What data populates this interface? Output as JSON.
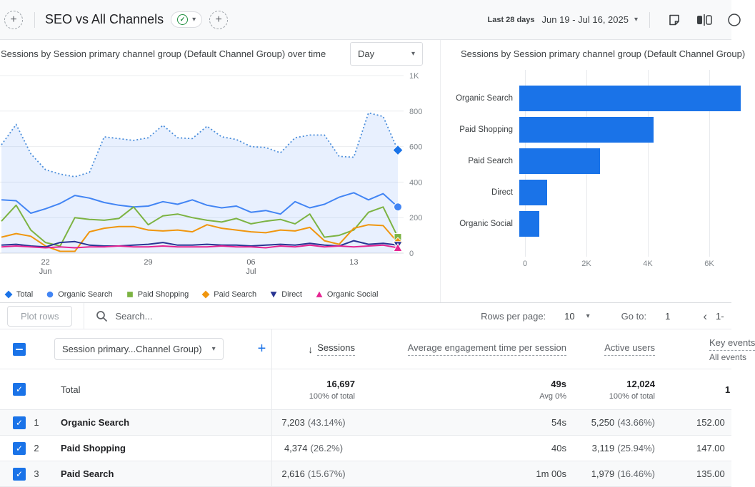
{
  "icons": {
    "add": "+",
    "caret": "▾",
    "check": "✓",
    "sort_desc": "↓",
    "chevron_left": "‹"
  },
  "topbar": {
    "title": "SEO vs All Channels",
    "date_preset": "Last 28 days",
    "date_range": "Jun 19 - Jul 16, 2025"
  },
  "left_chart": {
    "title": "Sessions by Session primary channel group (Default Channel Group) over time",
    "granularity": "Day"
  },
  "right_chart": {
    "title": "Sessions by Session primary channel group (Default Channel Group)"
  },
  "chart_data": [
    {
      "type": "line",
      "title": "Sessions by Session primary channel group (Default Channel Group) over time",
      "granularity": "Day",
      "x_range": [
        "Jun 19, 2025",
        "Jul 16, 2025"
      ],
      "ylim": [
        0,
        1000
      ],
      "y_ticks": [
        {
          "label": "1K",
          "value": 1000
        },
        {
          "label": "800",
          "value": 800
        },
        {
          "label": "600",
          "value": 600
        },
        {
          "label": "400",
          "value": 400
        },
        {
          "label": "200",
          "value": 200
        },
        {
          "label": "0",
          "value": 0
        }
      ],
      "x_ticks": [
        {
          "label": "22",
          "sublabel": "Jun",
          "day": 3
        },
        {
          "label": "29",
          "sublabel": "",
          "day": 10
        },
        {
          "label": "06",
          "sublabel": "Jul",
          "day": 17
        },
        {
          "label": "13",
          "sublabel": "",
          "day": 24
        }
      ],
      "series": [
        {
          "name": "Total",
          "color": "#4b8edb",
          "marker_color": "#1a73e8",
          "dotted": true,
          "fill": "rgba(66,133,244,0.12)",
          "marker": "diamond",
          "values": [
            610,
            725,
            560,
            470,
            445,
            430,
            455,
            655,
            645,
            635,
            650,
            720,
            650,
            645,
            715,
            655,
            640,
            600,
            595,
            565,
            650,
            665,
            665,
            545,
            540,
            790,
            770,
            580
          ]
        },
        {
          "name": "Organic Search",
          "color": "#4285f4",
          "marker": "circle",
          "values": [
            300,
            295,
            225,
            250,
            280,
            325,
            310,
            285,
            270,
            260,
            265,
            290,
            275,
            300,
            270,
            255,
            265,
            230,
            240,
            220,
            290,
            255,
            275,
            315,
            340,
            300,
            335,
            260
          ]
        },
        {
          "name": "Paid Shopping",
          "color": "#7cb342",
          "marker": "square",
          "values": [
            180,
            270,
            130,
            60,
            40,
            200,
            190,
            185,
            195,
            260,
            160,
            210,
            220,
            200,
            185,
            175,
            195,
            165,
            180,
            190,
            165,
            220,
            90,
            100,
            130,
            230,
            260,
            90
          ]
        },
        {
          "name": "Paid Search",
          "color": "#f0960e",
          "marker": "diamond",
          "values": [
            90,
            110,
            95,
            40,
            10,
            10,
            120,
            140,
            150,
            150,
            130,
            125,
            130,
            120,
            160,
            140,
            130,
            120,
            115,
            130,
            125,
            145,
            70,
            50,
            140,
            160,
            155,
            60
          ]
        },
        {
          "name": "Direct",
          "color": "#283593",
          "marker": "triangle-down",
          "values": [
            45,
            50,
            40,
            35,
            60,
            65,
            45,
            40,
            40,
            45,
            50,
            60,
            45,
            45,
            50,
            45,
            45,
            40,
            45,
            50,
            45,
            55,
            45,
            40,
            70,
            50,
            55,
            45
          ]
        },
        {
          "name": "Organic Social",
          "color": "#e52592",
          "marker": "triangle-up",
          "values": [
            35,
            40,
            35,
            30,
            35,
            30,
            35,
            35,
            40,
            35,
            35,
            40,
            35,
            35,
            35,
            40,
            35,
            35,
            30,
            40,
            35,
            45,
            35,
            40,
            35,
            40,
            45,
            30
          ]
        }
      ]
    },
    {
      "type": "bar",
      "orientation": "horizontal",
      "title": "Sessions by Session primary channel group (Default Channel Group)",
      "categories": [
        "Organic Search",
        "Paid Shopping",
        "Paid Search",
        "Direct",
        "Organic Social"
      ],
      "values": [
        7203,
        4374,
        2616,
        900,
        650
      ],
      "bar_color": "#1a73e8",
      "xlim": [
        0,
        6650
      ],
      "x_ticks": [
        {
          "label": "0",
          "value": 0
        },
        {
          "label": "2K",
          "value": 2000
        },
        {
          "label": "4K",
          "value": 4000
        },
        {
          "label": "6K",
          "value": 6000
        }
      ]
    }
  ],
  "toolbar": {
    "plot_rows_label": "Plot rows",
    "search_placeholder": "Search...",
    "rows_per_page_label": "Rows per page:",
    "rows_per_page_value": "10",
    "go_to_label": "Go to:",
    "go_to_value": "1",
    "pagination_text": "1-"
  },
  "table": {
    "dimension_selector": "Session primary...Channel Group)",
    "columns": {
      "sessions": "Sessions",
      "engagement": "Average engagement time per session",
      "active_users": "Active users",
      "key_events": "Key events",
      "key_events_sub": "All events"
    },
    "total": {
      "label": "Total",
      "sessions": "16,697",
      "sessions_sub": "100% of total",
      "engagement": "49s",
      "engagement_sub": "Avg 0%",
      "active_users": "12,024",
      "active_users_sub": "100% of total",
      "key_events": "1"
    },
    "rows": [
      {
        "index": "1",
        "name": "Organic Search",
        "sessions": "7,203",
        "sessions_pct": "(43.14%)",
        "engagement": "54s",
        "active_users": "5,250",
        "active_users_pct": "(43.66%)",
        "key_events": "152.00"
      },
      {
        "index": "2",
        "name": "Paid Shopping",
        "sessions": "4,374",
        "sessions_pct": "(26.2%)",
        "engagement": "40s",
        "active_users": "3,119",
        "active_users_pct": "(25.94%)",
        "key_events": "147.00"
      },
      {
        "index": "3",
        "name": "Paid Search",
        "sessions": "2,616",
        "sessions_pct": "(15.67%)",
        "engagement": "1m 00s",
        "active_users": "1,979",
        "active_users_pct": "(16.46%)",
        "key_events": "135.00"
      }
    ]
  }
}
